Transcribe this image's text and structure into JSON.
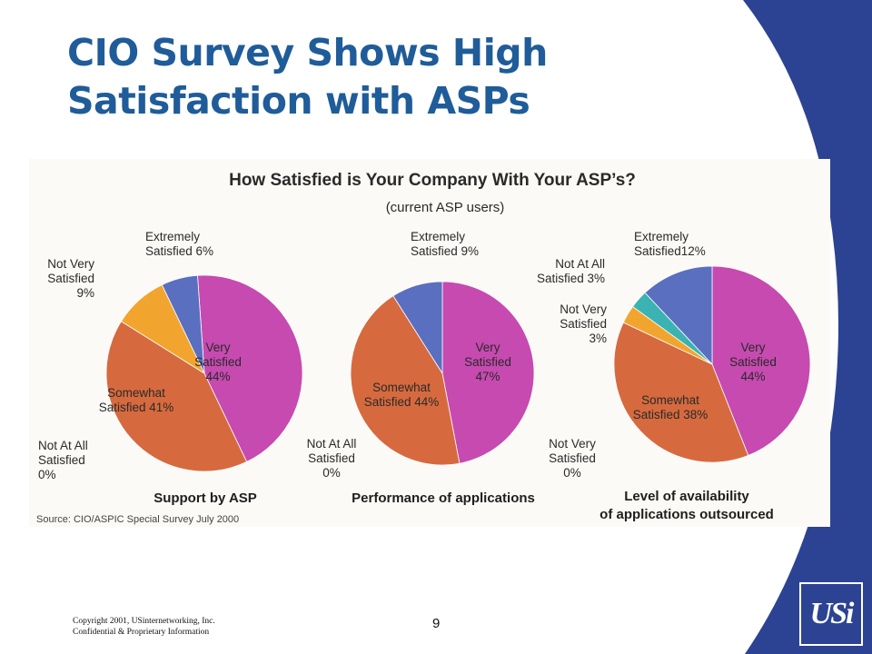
{
  "slide": {
    "title_lines": [
      "CIO Survey Shows High",
      "Satisfaction with ASPs"
    ],
    "footer": {
      "copyright": "Copyright 2001, USinternetworking, Inc.",
      "confidential": "Confidential & Proprietary Information"
    },
    "page_number": "9",
    "logo_text": "USi",
    "colors": {
      "title": "#1f5c99",
      "band": "#2c4393"
    }
  },
  "figure": {
    "title": "How Satisfied is Your Company With Your ASP’s?",
    "subtitle": "(current ASP users)",
    "source": "Source: CIO/ASPIC Special Survey July 2000"
  },
  "chart_data": [
    {
      "type": "pie",
      "caption": "Support by ASP",
      "slices": [
        {
          "label": "Very Satisfied",
          "value": 44,
          "color": "#c64ab0"
        },
        {
          "label": "Not At All Satisfied",
          "value": 0,
          "color": "#c8c8c8"
        },
        {
          "label": "Somewhat Satisfied",
          "value": 41,
          "color": "#d66a3e"
        },
        {
          "label": "Not Very Satisfied",
          "value": 9,
          "color": "#f2a52e"
        },
        {
          "label": "Extremely Satisfied",
          "value": 6,
          "color": "#5b6fc0"
        }
      ],
      "annotations": [
        {
          "lines": [
            "Very",
            "Satisfied",
            "44%"
          ]
        },
        {
          "lines": [
            "Somewhat",
            "Satisfied 41%"
          ]
        },
        {
          "lines": [
            "Not Very",
            "Satisfied",
            "9%"
          ]
        },
        {
          "lines": [
            "Extremely",
            "Satisfied 6%"
          ]
        },
        {
          "lines": [
            "Not At All",
            "Satisfied",
            "0%"
          ]
        }
      ]
    },
    {
      "type": "pie",
      "caption": "Performance of applications",
      "slices": [
        {
          "label": "Very Satisfied",
          "value": 47,
          "color": "#c64ab0"
        },
        {
          "label": "Not Very Satisfied",
          "value": 0,
          "color": "#f2a52e"
        },
        {
          "label": "Not At All Satisfied",
          "value": 0,
          "color": "#c8c8c8"
        },
        {
          "label": "Somewhat Satisfied",
          "value": 44,
          "color": "#d66a3e"
        },
        {
          "label": "Extremely Satisfied",
          "value": 9,
          "color": "#5b6fc0"
        }
      ],
      "annotations": [
        {
          "lines": [
            "Very",
            "Satisfied",
            "47%"
          ]
        },
        {
          "lines": [
            "Somewhat",
            "Satisfied 44%"
          ]
        },
        {
          "lines": [
            "Extremely",
            "Satisfied 9%"
          ]
        },
        {
          "lines": [
            "Not At All",
            "Satisfied",
            "0%"
          ]
        },
        {
          "lines": [
            "Not Very",
            "Satisfied",
            "0%"
          ]
        }
      ]
    },
    {
      "type": "pie",
      "caption_lines": [
        "Level of availability",
        "of applications outsourced"
      ],
      "slices": [
        {
          "label": "Very Satisfied",
          "value": 44,
          "color": "#c64ab0"
        },
        {
          "label": "Somewhat Satisfied",
          "value": 38,
          "color": "#d66a3e"
        },
        {
          "label": "Not Very Satisfied",
          "value": 3,
          "color": "#f2a52e"
        },
        {
          "label": "Not At All Satisfied",
          "value": 3,
          "color": "#3bb3b3"
        },
        {
          "label": "Extremely Satisfied",
          "value": 12,
          "color": "#5b6fc0"
        }
      ],
      "annotations": [
        {
          "lines": [
            "Very",
            "Satisfied",
            "44%"
          ]
        },
        {
          "lines": [
            "Somewhat",
            "Satisfied 38%"
          ]
        },
        {
          "lines": [
            "Not Very",
            "Satisfied",
            "3%"
          ]
        },
        {
          "lines": [
            "Not At All",
            "Satisfied 3%"
          ]
        },
        {
          "lines": [
            "Extremely",
            "Satisfied12%"
          ]
        }
      ]
    }
  ]
}
